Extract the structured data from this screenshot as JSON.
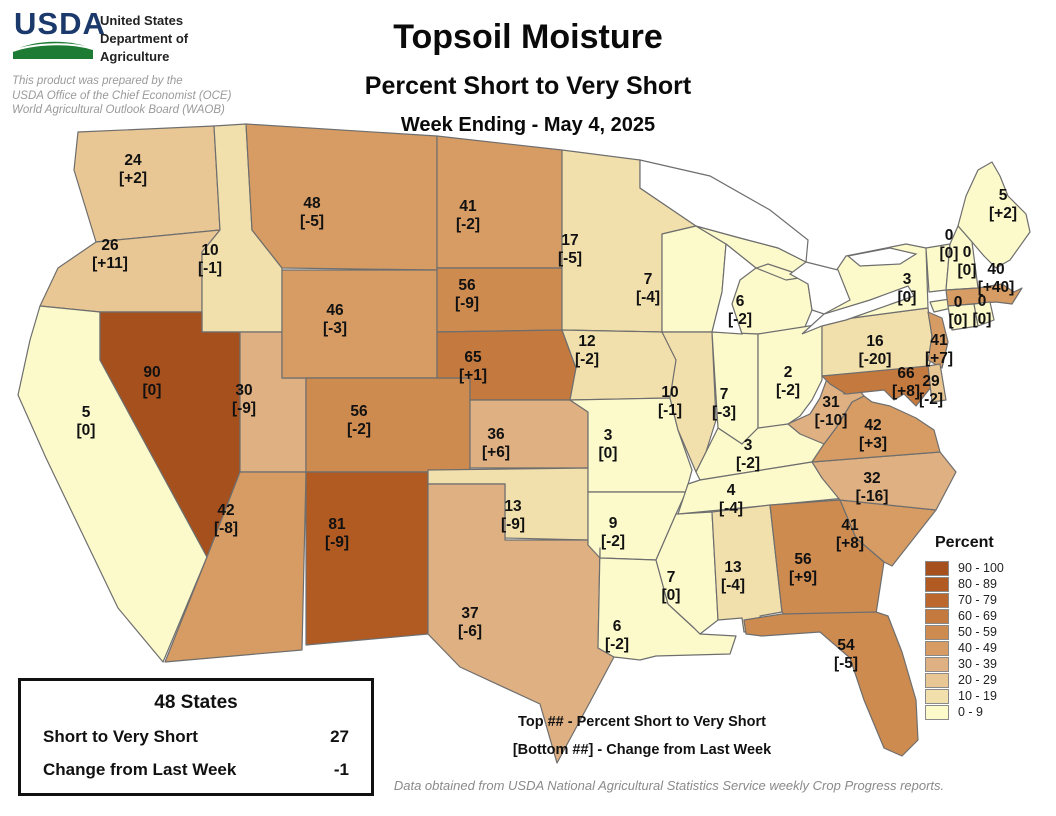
{
  "header": {
    "logo_text": "USDA",
    "agency_lines": [
      "United States",
      "Department of",
      "Agriculture"
    ],
    "disclaimer_lines": [
      "This product was prepared by the",
      "USDA Office of the Chief Economist (OCE)",
      "World Agricultural Outlook Board (WAOB)"
    ],
    "logo_blue": "#1b3a6b",
    "logo_green": "#1e7b34"
  },
  "title_block": {
    "title": "Topsoil Moisture",
    "subtitle": "Percent Short to Very Short",
    "week_ending": "Week Ending - May 4, 2025"
  },
  "summary_box": {
    "heading": "48 States",
    "rows": [
      {
        "label": "Short to Very Short",
        "value": "27"
      },
      {
        "label": "Change from Last Week",
        "value": "-1"
      }
    ]
  },
  "annotation": {
    "line1": "Top ## - Percent Short to Very Short",
    "line2": "[Bottom ##] - Change from Last Week"
  },
  "footer": "Data obtained from USDA National Agricultural Statistics Service weekly Crop Progress reports.",
  "chart_data": {
    "type": "choropleth",
    "title": "Topsoil Moisture - Percent Short to Very Short",
    "week_ending": "May 4, 2025",
    "unit": "percent of topsoil moisture rated short to very short; bracketed value is change from last week",
    "legend": {
      "title": "Percent",
      "buckets": [
        {
          "range": "90 - 100",
          "min": 90,
          "max": 100,
          "color": "#A6501D"
        },
        {
          "range": "80 - 89",
          "min": 80,
          "max": 89,
          "color": "#B15A22"
        },
        {
          "range": "70 - 79",
          "min": 70,
          "max": 79,
          "color": "#BB672E"
        },
        {
          "range": "60 - 69",
          "min": 60,
          "max": 69,
          "color": "#C4793E"
        },
        {
          "range": "50 - 59",
          "min": 50,
          "max": 59,
          "color": "#CD8B50"
        },
        {
          "range": "40 - 49",
          "min": 40,
          "max": 49,
          "color": "#D69C63"
        },
        {
          "range": "30 - 39",
          "min": 30,
          "max": 39,
          "color": "#DFB081"
        },
        {
          "range": "20 - 29",
          "min": 20,
          "max": 29,
          "color": "#E9C794"
        },
        {
          "range": "10 - 19",
          "min": 10,
          "max": 19,
          "color": "#F2E0AC"
        },
        {
          "range": "0 - 9",
          "min": 0,
          "max": 9,
          "color": "#FCFACB"
        }
      ]
    },
    "states": [
      {
        "code": "WA",
        "name": "Washington",
        "value": 24,
        "change": "+2"
      },
      {
        "code": "OR",
        "name": "Oregon",
        "value": 26,
        "change": "+11"
      },
      {
        "code": "CA",
        "name": "California",
        "value": 5,
        "change": "0"
      },
      {
        "code": "ID",
        "name": "Idaho",
        "value": 10,
        "change": "-1"
      },
      {
        "code": "NV",
        "name": "Nevada",
        "value": 90,
        "change": "0"
      },
      {
        "code": "UT",
        "name": "Utah",
        "value": 30,
        "change": "-9"
      },
      {
        "code": "AZ",
        "name": "Arizona",
        "value": 42,
        "change": "-8"
      },
      {
        "code": "MT",
        "name": "Montana",
        "value": 48,
        "change": "-5"
      },
      {
        "code": "WY",
        "name": "Wyoming",
        "value": 46,
        "change": "-3"
      },
      {
        "code": "CO",
        "name": "Colorado",
        "value": 56,
        "change": "-2"
      },
      {
        "code": "NM",
        "name": "New Mexico",
        "value": 81,
        "change": "-9"
      },
      {
        "code": "ND",
        "name": "North Dakota",
        "value": 41,
        "change": "-2"
      },
      {
        "code": "SD",
        "name": "South Dakota",
        "value": 56,
        "change": "-9"
      },
      {
        "code": "NE",
        "name": "Nebraska",
        "value": 65,
        "change": "+1"
      },
      {
        "code": "KS",
        "name": "Kansas",
        "value": 36,
        "change": "+6"
      },
      {
        "code": "OK",
        "name": "Oklahoma",
        "value": 13,
        "change": "-9"
      },
      {
        "code": "TX",
        "name": "Texas",
        "value": 37,
        "change": "-6"
      },
      {
        "code": "MN",
        "name": "Minnesota",
        "value": 17,
        "change": "-5"
      },
      {
        "code": "IA",
        "name": "Iowa",
        "value": 12,
        "change": "-2"
      },
      {
        "code": "MO",
        "name": "Missouri",
        "value": 3,
        "change": "0"
      },
      {
        "code": "AR",
        "name": "Arkansas",
        "value": 9,
        "change": "-2"
      },
      {
        "code": "LA",
        "name": "Louisiana",
        "value": 6,
        "change": "-2"
      },
      {
        "code": "WI",
        "name": "Wisconsin",
        "value": 7,
        "change": "-4"
      },
      {
        "code": "IL",
        "name": "Illinois",
        "value": 10,
        "change": "-1"
      },
      {
        "code": "MS",
        "name": "Mississippi",
        "value": 7,
        "change": "0"
      },
      {
        "code": "MI",
        "name": "Michigan",
        "value": 6,
        "change": "-2"
      },
      {
        "code": "IN",
        "name": "Indiana",
        "value": 7,
        "change": "-3"
      },
      {
        "code": "OH",
        "name": "Ohio",
        "value": 2,
        "change": "-2"
      },
      {
        "code": "KY",
        "name": "Kentucky",
        "value": 3,
        "change": "-2"
      },
      {
        "code": "TN",
        "name": "Tennessee",
        "value": 4,
        "change": "-4"
      },
      {
        "code": "AL",
        "name": "Alabama",
        "value": 13,
        "change": "-4"
      },
      {
        "code": "GA",
        "name": "Georgia",
        "value": 56,
        "change": "+9"
      },
      {
        "code": "FL",
        "name": "Florida",
        "value": 54,
        "change": "-5"
      },
      {
        "code": "SC",
        "name": "South Carolina",
        "value": 41,
        "change": "+8"
      },
      {
        "code": "NC",
        "name": "North Carolina",
        "value": 32,
        "change": "-16"
      },
      {
        "code": "VA",
        "name": "Virginia",
        "value": 42,
        "change": "+3"
      },
      {
        "code": "WV",
        "name": "West Virginia",
        "value": 31,
        "change": "-10"
      },
      {
        "code": "PA",
        "name": "Pennsylvania",
        "value": 16,
        "change": "-20"
      },
      {
        "code": "NY",
        "name": "New York",
        "value": 3,
        "change": "0"
      },
      {
        "code": "NJ",
        "name": "New Jersey",
        "value": 41,
        "change": "+7"
      },
      {
        "code": "MD",
        "name": "Maryland",
        "value": 66,
        "change": "+8"
      },
      {
        "code": "DE",
        "name": "Delaware",
        "value": 29,
        "change": "-2"
      },
      {
        "code": "ME",
        "name": "Maine",
        "value": 5,
        "change": "+2"
      },
      {
        "code": "VT",
        "name": "Vermont",
        "value": 0,
        "change": "0"
      },
      {
        "code": "NH",
        "name": "New Hampshire",
        "value": 0,
        "change": "0"
      },
      {
        "code": "MA",
        "name": "Massachusetts",
        "value": 40,
        "change": "+40"
      },
      {
        "code": "CT",
        "name": "Connecticut",
        "value": 0,
        "change": "0"
      },
      {
        "code": "RI",
        "name": "Rhode Island",
        "value": 0,
        "change": "0"
      }
    ]
  }
}
